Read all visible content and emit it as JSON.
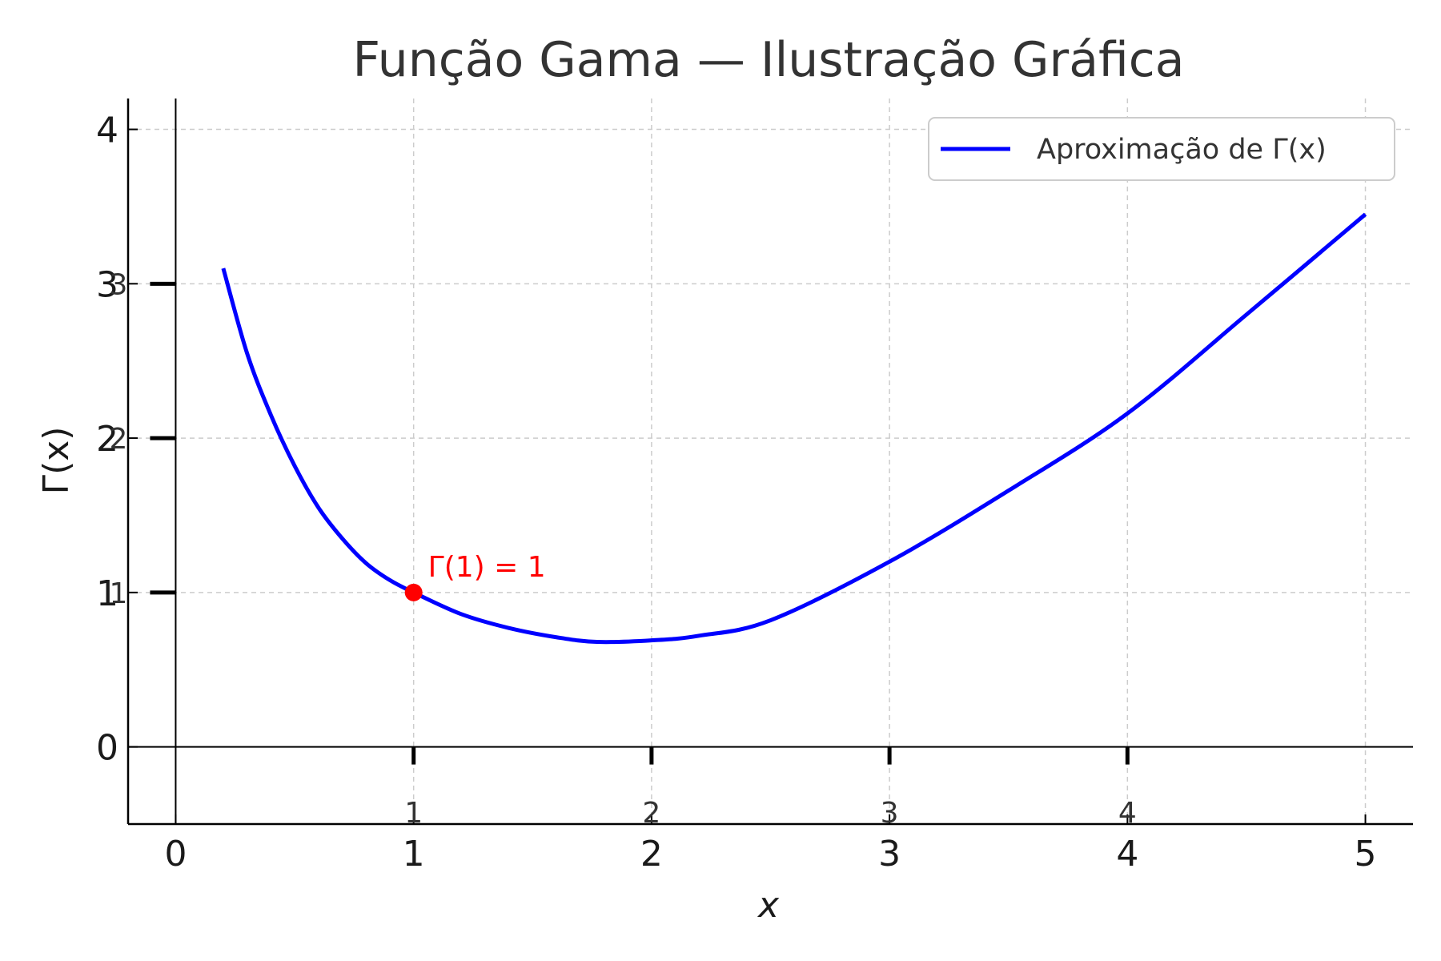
{
  "chart_data": {
    "type": "line",
    "title": "Função Gama — Ilustração Gráfica",
    "xlabel": "x",
    "ylabel": "Γ(x)",
    "xlim": [
      -0.2,
      5.2
    ],
    "ylim": [
      -0.5,
      4.2
    ],
    "x_ticks": [
      0,
      1,
      2,
      3,
      4,
      5
    ],
    "y_ticks": [
      0,
      1,
      2,
      3,
      4
    ],
    "inner_x_tick_labels": [
      "1",
      "2",
      "3",
      "4"
    ],
    "inner_y_tick_labels": [
      "1",
      "2",
      "3"
    ],
    "grid": true,
    "legend_position": "top-right",
    "series": [
      {
        "name": "Aproximação de Γ(x)",
        "color": "#0000ff",
        "x": [
          0.2,
          0.3,
          0.4,
          0.5,
          0.6,
          0.7,
          0.8,
          0.9,
          1.0,
          1.2,
          1.4,
          1.6,
          1.77,
          2.0,
          2.2,
          2.5,
          3.0,
          3.5,
          4.0,
          4.5,
          5.0
        ],
        "y": [
          3.1,
          2.55,
          2.15,
          1.82,
          1.55,
          1.35,
          1.19,
          1.08,
          1.0,
          0.86,
          0.77,
          0.71,
          0.68,
          0.69,
          0.72,
          0.82,
          1.2,
          1.66,
          2.16,
          2.8,
          3.45
        ]
      }
    ],
    "annotations": [
      {
        "text": "Γ(1) = 1",
        "x": 1,
        "y": 1,
        "color": "#ff0000"
      }
    ]
  }
}
